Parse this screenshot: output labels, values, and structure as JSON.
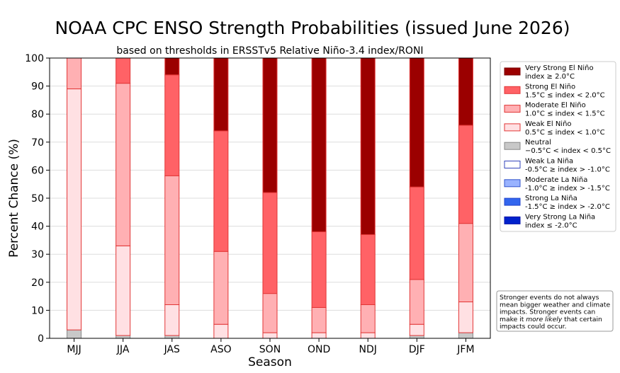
{
  "chart_data": {
    "type": "bar",
    "stacked": true,
    "title": "NOAA CPC ENSO Strength Probabilities (issued June 2026)",
    "subtitle": "based on thresholds in ERSSTv5 Relative Niño-3.4 index/RONI",
    "xlabel": "Season",
    "ylabel": "Percent Chance (%)",
    "ylim": [
      0,
      100
    ],
    "yticks": [
      0,
      10,
      20,
      30,
      40,
      50,
      60,
      70,
      80,
      90,
      100
    ],
    "grid": "horizontal",
    "legend_placement": "right",
    "categories": [
      "MJJ",
      "JJA",
      "JAS",
      "ASO",
      "SON",
      "OND",
      "NDJ",
      "DJF",
      "JFM"
    ],
    "series": [
      {
        "key": "vstrong_la",
        "values": [
          0,
          0,
          0,
          0,
          0,
          0,
          0,
          0,
          0
        ],
        "color": "#0022cc",
        "edge": "#0022cc"
      },
      {
        "key": "strong_la",
        "values": [
          0,
          0,
          0,
          0,
          0,
          0,
          0,
          0,
          0
        ],
        "color": "#3366ee",
        "edge": "#2244cc"
      },
      {
        "key": "moderate_la",
        "values": [
          0,
          0,
          0,
          0,
          0,
          0,
          0,
          0,
          0
        ],
        "color": "#99b3ff",
        "edge": "#3355cc"
      },
      {
        "key": "weak_la",
        "values": [
          0,
          0,
          0,
          0,
          0,
          0,
          0,
          0,
          0
        ],
        "color": "#ffffff",
        "edge": "#3344bb"
      },
      {
        "key": "neutral",
        "values": [
          3,
          1,
          1,
          0,
          0,
          0,
          0,
          1,
          2
        ],
        "color": "#c8c8c8",
        "edge": "#888888"
      },
      {
        "key": "weak_el",
        "values": [
          86,
          32,
          11,
          5,
          2,
          2,
          2,
          4,
          11
        ],
        "color": "#ffe0e3",
        "edge": "#e23636"
      },
      {
        "key": "moderate_el",
        "values": [
          11,
          58,
          46,
          26,
          14,
          9,
          10,
          16,
          28
        ],
        "color": "#ffb0b3",
        "edge": "#e23636"
      },
      {
        "key": "strong_el",
        "values": [
          0,
          9,
          36,
          43,
          36,
          27,
          25,
          33,
          35
        ],
        "color": "#ff6266",
        "edge": "#e23636"
      },
      {
        "key": "vstrong_el",
        "values": [
          0,
          0,
          6,
          26,
          48,
          62,
          63,
          46,
          24
        ],
        "color": "#9b0000",
        "edge": "#e23636"
      }
    ]
  },
  "legend": [
    {
      "line1": "Very Strong El Niño",
      "line2": "index ≥ 2.0°C",
      "color": "#9b0000",
      "edge": "#7a0000"
    },
    {
      "line1": "Strong El Niño",
      "line2": "1.5°C ≤ index < 2.0°C",
      "color": "#ff6266",
      "edge": "#e23636"
    },
    {
      "line1": "Moderate El Niño",
      "line2": "1.0°C ≤ index < 1.5°C",
      "color": "#ffb0b3",
      "edge": "#e23636"
    },
    {
      "line1": "Weak El Niño",
      "line2": "0.5°C ≤ index < 1.0°C",
      "color": "#ffe0e3",
      "edge": "#e23636"
    },
    {
      "line1": "Neutral",
      "line2": "−0.5°C < index < 0.5°C",
      "color": "#c8c8c8",
      "edge": "#888888"
    },
    {
      "line1": "Weak La Niña",
      "line2": "-0.5°C ≥ index > -1.0°C",
      "color": "#ffffff",
      "edge": "#3344bb"
    },
    {
      "line1": "Moderate La Niña",
      "line2": "-1.0°C ≥ index > -1.5°C",
      "color": "#99b3ff",
      "edge": "#3355cc"
    },
    {
      "line1": "Strong La Niña",
      "line2": "-1.5°C ≥ index > -2.0°C",
      "color": "#3366ee",
      "edge": "#2244cc"
    },
    {
      "line1": "Very Strong La Niña",
      "line2": "index ≤ -2.0°C",
      "color": "#0022cc",
      "edge": "#0011aa"
    }
  ],
  "note": {
    "lines": [
      [
        {
          "t": "Stronger events do not always"
        }
      ],
      [
        {
          "t": "mean bigger weather and climate"
        }
      ],
      [
        {
          "t": "impacts. Stronger events can"
        }
      ],
      [
        {
          "t": "make it "
        },
        {
          "t": "more likely",
          "i": true
        },
        {
          "t": " that certain"
        }
      ],
      [
        {
          "t": "impacts could occur."
        }
      ]
    ]
  }
}
